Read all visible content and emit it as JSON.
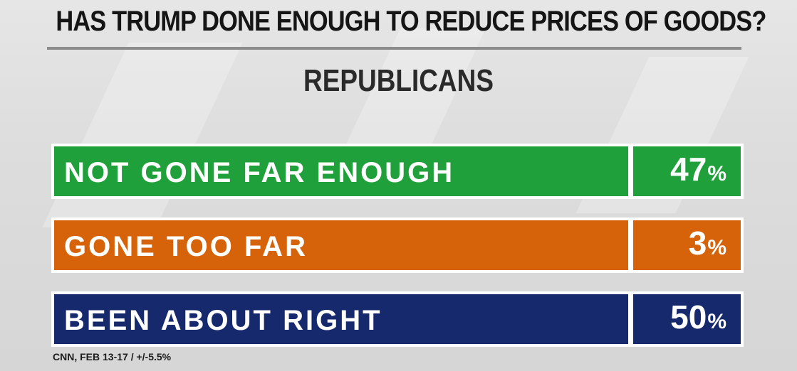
{
  "header": {
    "title": "HAS TRUMP DONE ENOUGH TO REDUCE PRICES OF GOODS?",
    "subtitle": "REPUBLICANS"
  },
  "rows": [
    {
      "label": "NOT GONE FAR ENOUGH",
      "value": "47",
      "unit": "%",
      "color": "#1fa03a"
    },
    {
      "label": "GONE TOO FAR",
      "value": "3",
      "unit": "%",
      "color": "#d66309"
    },
    {
      "label": "BEEN ABOUT RIGHT",
      "value": "50",
      "unit": "%",
      "color": "#17296d"
    }
  ],
  "footer": {
    "source": "CNN, FEB 13-17 / +/-5.5%"
  },
  "chart_data": {
    "type": "table",
    "title": "HAS TRUMP DONE ENOUGH TO REDUCE PRICES OF GOODS?",
    "subtitle": "REPUBLICANS",
    "categories": [
      "NOT GONE FAR ENOUGH",
      "GONE TOO FAR",
      "BEEN ABOUT RIGHT"
    ],
    "values": [
      47,
      3,
      50
    ],
    "unit": "%",
    "colors": [
      "#1fa03a",
      "#d66309",
      "#17296d"
    ],
    "source": "CNN, FEB 13-17 / +/-5.5%"
  }
}
